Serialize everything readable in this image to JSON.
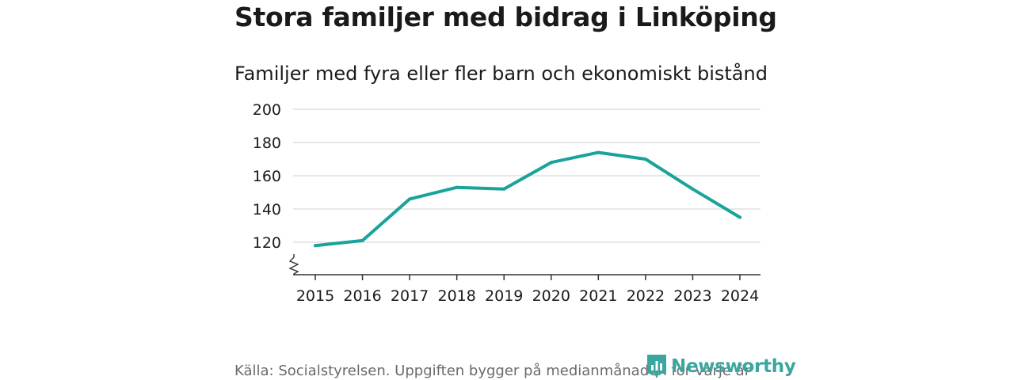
{
  "header": {
    "title": "Stora familjer med bidrag i Linköping",
    "subtitle": "Familjer med fyra eller fler barn och ekonomiskt bistånd"
  },
  "footer": {
    "source": "Källa: Socialstyrelsen. Uppgiften bygger på medianmånaden för varje år",
    "logo_text": "Newsworthy"
  },
  "colors": {
    "line": "#1aa39a",
    "grid": "#d9d9d9",
    "axis": "#333333",
    "brand": "#3aa69f"
  },
  "chart_data": {
    "type": "line",
    "title": "Stora familjer med bidrag i Linköping",
    "subtitle": "Familjer med fyra eller fler barn och ekonomiskt bistånd",
    "xlabel": "",
    "ylabel": "",
    "x": [
      "2015",
      "2016",
      "2017",
      "2018",
      "2019",
      "2020",
      "2021",
      "2022",
      "2023",
      "2024"
    ],
    "series": [
      {
        "name": "Familjer med fyra eller fler barn och ekonomiskt bistånd",
        "values": [
          118,
          121,
          146,
          153,
          152,
          168,
          174,
          170,
          152,
          135
        ]
      }
    ],
    "ylim": [
      100,
      200
    ],
    "yticks": [
      120,
      140,
      160,
      180,
      200
    ],
    "grid": true,
    "axis_break": true
  }
}
